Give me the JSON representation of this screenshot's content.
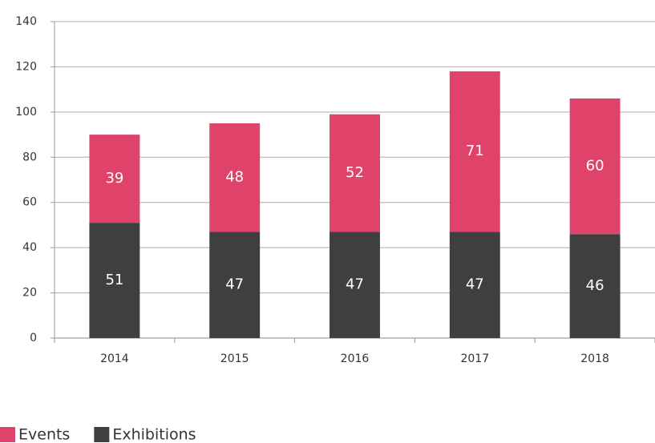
{
  "chart_data": {
    "type": "bar",
    "stacked": true,
    "categories": [
      "2014",
      "2015",
      "2016",
      "2017",
      "2018"
    ],
    "series": [
      {
        "name": "Events",
        "color": "#e0436a",
        "values": [
          39,
          48,
          52,
          71,
          60
        ]
      },
      {
        "name": "Exhibitions",
        "color": "#3f3f3f",
        "values": [
          51,
          47,
          47,
          47,
          46
        ]
      }
    ],
    "ylim": [
      0,
      140
    ],
    "yticks": [
      0,
      20,
      40,
      60,
      80,
      100,
      120,
      140
    ],
    "grid": true
  }
}
